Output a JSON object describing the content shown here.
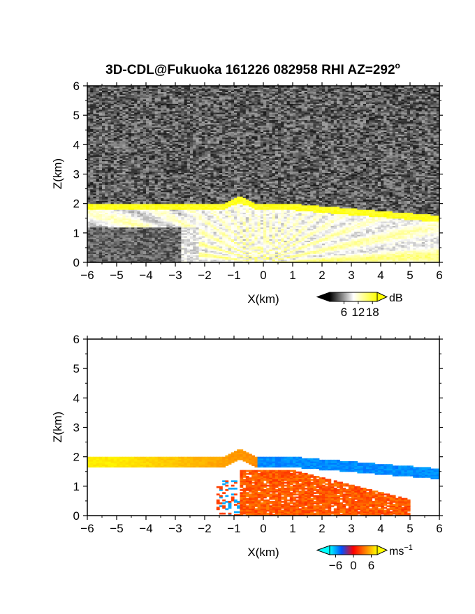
{
  "title": "3D-CDL@Fukuoka 161226 082958 RHI AZ=292",
  "title_superscript": "o",
  "chart_data": [
    {
      "type": "heatmap",
      "name": "backscatter-intensity",
      "xlabel": "X(km)",
      "ylabel": "Z(km)",
      "xlim": [
        -6,
        6
      ],
      "ylim": [
        0,
        6
      ],
      "xticks": [
        "-6",
        "-5",
        "-4",
        "-3",
        "-2",
        "-1",
        "0",
        "1",
        "2",
        "3",
        "4",
        "5",
        "6"
      ],
      "yticks": [
        "0",
        "1",
        "2",
        "3",
        "4",
        "5",
        "6"
      ],
      "colorbar": {
        "unit": "dB",
        "ticks": [
          "6",
          "12",
          "18"
        ],
        "range": [
          0,
          20
        ],
        "colors": [
          "#000000",
          "#ffffff",
          "#ffff00"
        ]
      },
      "features": {
        "cloud_layer_top_km": 2.0,
        "cloud_layer_descends_to_km": 1.6,
        "cloud_layer_max_dB": 20,
        "cloud_peak_x_km": -0.8,
        "cloud_peak_z_km": 2.25
      }
    },
    {
      "type": "heatmap",
      "name": "doppler-velocity",
      "xlabel": "X(km)",
      "ylabel": "Z(km)",
      "xlim": [
        -6,
        6
      ],
      "ylim": [
        0,
        6
      ],
      "xticks": [
        "-6",
        "-5",
        "-4",
        "-3",
        "-2",
        "-1",
        "0",
        "1",
        "2",
        "3",
        "4",
        "5",
        "6"
      ],
      "yticks": [
        "0",
        "1",
        "2",
        "3",
        "4",
        "5",
        "6"
      ],
      "colorbar": {
        "unit": "ms",
        "unit_exponent": "−1",
        "ticks": [
          "−6",
          "0",
          "6"
        ],
        "range": [
          -8,
          8
        ],
        "colors": [
          "#00ffff",
          "#0050ff",
          "#ff0000",
          "#ff8000",
          "#ffff00"
        ]
      },
      "features": {
        "layer_top_km": 2.0,
        "left_velocity_ms": 7,
        "right_velocity_ms": -6,
        "low_level_right_velocity_ms": 4
      }
    }
  ]
}
